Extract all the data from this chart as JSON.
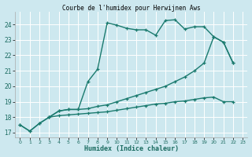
{
  "title": "Courbe de l'humidex pour Herwijnen Aws",
  "xlabel": "Humidex (Indice chaleur)",
  "background_color": "#cde8ef",
  "grid_color": "#ffffff",
  "line_color": "#1a7a6e",
  "xlim": [
    -0.5,
    23.5
  ],
  "ylim": [
    16.7,
    24.8
  ],
  "yticks": [
    17,
    18,
    19,
    20,
    21,
    22,
    23,
    24
  ],
  "xticks": [
    0,
    1,
    2,
    3,
    4,
    5,
    6,
    7,
    8,
    9,
    10,
    11,
    12,
    13,
    14,
    15,
    16,
    17,
    18,
    19,
    20,
    21,
    22,
    23
  ],
  "series1_x": [
    0,
    1,
    2,
    3,
    4,
    5,
    6,
    7,
    8,
    9,
    10,
    11,
    12,
    13,
    14,
    15,
    16,
    17,
    18,
    19,
    20,
    21,
    22
  ],
  "series1_y": [
    17.5,
    17.1,
    17.6,
    18.0,
    18.4,
    18.5,
    18.5,
    20.3,
    21.1,
    24.1,
    23.95,
    23.75,
    23.65,
    23.65,
    23.3,
    24.25,
    24.3,
    23.7,
    23.85,
    23.85,
    23.2,
    22.85,
    21.5
  ],
  "series2_x": [
    3,
    4,
    5,
    6,
    7,
    8,
    9,
    10,
    11,
    12,
    13,
    14,
    15,
    16,
    17,
    18,
    19,
    20,
    21,
    22
  ],
  "series2_y": [
    18.0,
    18.4,
    18.5,
    18.5,
    18.55,
    18.7,
    18.8,
    19.0,
    19.2,
    19.4,
    19.6,
    19.8,
    20.0,
    20.3,
    20.6,
    21.0,
    21.5,
    23.2,
    22.85,
    21.5
  ],
  "series3_x": [
    0,
    1,
    2,
    3,
    4,
    5,
    6,
    7,
    8,
    9,
    10,
    11,
    12,
    13,
    14,
    15,
    16,
    17,
    18,
    19,
    20,
    21,
    22
  ],
  "series3_y": [
    17.5,
    17.1,
    17.6,
    18.0,
    18.1,
    18.15,
    18.2,
    18.25,
    18.3,
    18.35,
    18.45,
    18.55,
    18.65,
    18.75,
    18.85,
    18.9,
    19.0,
    19.05,
    19.15,
    19.25,
    19.3,
    19.0,
    19.0
  ]
}
